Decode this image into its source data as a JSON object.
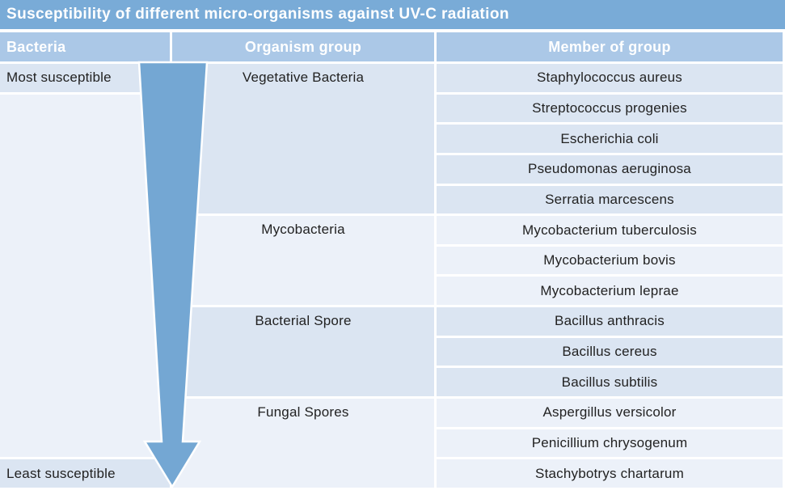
{
  "title": "Susceptibility of different micro-organisms against UV-C radiation",
  "headers": {
    "bacteria": "Bacteria",
    "organism_group": "Organism group",
    "member_of_group": "Member of group"
  },
  "susceptibility_scale": {
    "most": "Most susceptible",
    "least": "Least susceptible"
  },
  "groups": [
    {
      "label": "Vegetative Bacteria",
      "shade": "dark",
      "members": [
        "Staphylococcus aureus",
        "Streptococcus progenies",
        "Escherichia coli",
        "Pseudomonas aeruginosa",
        "Serratia marcescens"
      ]
    },
    {
      "label": "Mycobacteria",
      "shade": "light",
      "members": [
        "Mycobacterium tuberculosis",
        "Mycobacterium bovis",
        "Mycobacterium leprae"
      ]
    },
    {
      "label": "Bacterial Spore",
      "shade": "dark",
      "members": [
        "Bacillus anthracis",
        "Bacillus cereus",
        "Bacillus subtilis"
      ]
    },
    {
      "label": "Fungal Spores",
      "shade": "light",
      "members": [
        "Aspergillus versicolor",
        "Penicillium chrysogenum",
        "Stachybotrys chartarum"
      ]
    }
  ],
  "colors": {
    "title_bar_bg": "#79abd7",
    "header_bg": "#abc8e7",
    "header_text": "#ffffff",
    "row_dark": "#dbe5f2",
    "row_light": "#ecf1f9",
    "body_text": "#222222",
    "arrow_fill": "#74a7d3"
  }
}
